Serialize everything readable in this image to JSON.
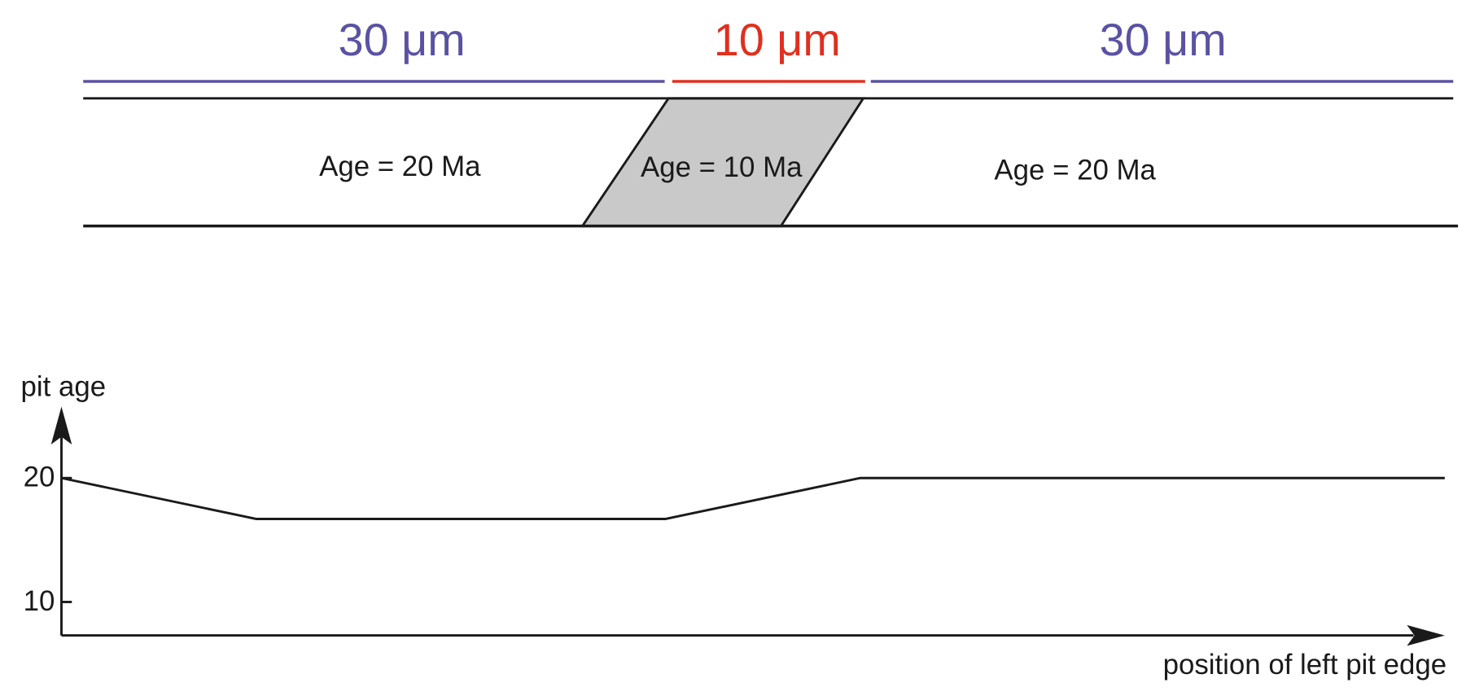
{
  "diagram": {
    "widths": [
      "30 μm",
      "10 μm",
      "30 μm"
    ],
    "regions": [
      "Age = 20 Ma",
      "Age = 10 Ma",
      "Age = 20 Ma"
    ]
  },
  "chart_data": {
    "type": "line",
    "y_label": "pit age",
    "x_label": "position of left pit edge",
    "x": [
      0,
      10,
      31,
      41,
      71
    ],
    "values": [
      20,
      16.7,
      16.7,
      20,
      20
    ],
    "color": "#1a1a1a",
    "xlim": [
      0,
      71
    ],
    "ylim": [
      7.3,
      25
    ],
    "yticks": [
      10,
      20
    ]
  }
}
